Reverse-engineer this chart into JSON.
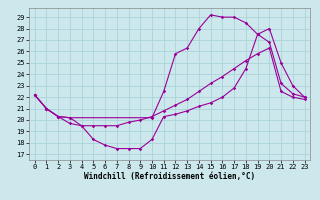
{
  "xlabel": "Windchill (Refroidissement éolien,°C)",
  "ylabel": "",
  "bg_color": "#cce8ec",
  "line_color": "#990099",
  "grid_color": "#aad4d8",
  "xlim": [
    -0.5,
    23.5
  ],
  "ylim": [
    16.5,
    29.8
  ],
  "yticks": [
    17,
    18,
    19,
    20,
    21,
    22,
    23,
    24,
    25,
    26,
    27,
    28,
    29
  ],
  "xticks": [
    0,
    1,
    2,
    3,
    4,
    5,
    6,
    7,
    8,
    9,
    10,
    11,
    12,
    13,
    14,
    15,
    16,
    17,
    18,
    19,
    20,
    21,
    22,
    23
  ],
  "line1_x": [
    0,
    1,
    2,
    3,
    10,
    11,
    12,
    13,
    14,
    15,
    16,
    17,
    18,
    19,
    20,
    21,
    22,
    23
  ],
  "line1_y": [
    22.2,
    21.0,
    20.3,
    20.2,
    20.2,
    22.5,
    25.8,
    26.3,
    28.0,
    29.2,
    29.0,
    29.0,
    28.5,
    27.5,
    26.8,
    23.2,
    22.3,
    22.0
  ],
  "line2_x": [
    0,
    1,
    2,
    3,
    4,
    5,
    6,
    7,
    8,
    9,
    10,
    11,
    12,
    13,
    14,
    15,
    16,
    17,
    18,
    19,
    20,
    21,
    22,
    23
  ],
  "line2_y": [
    22.2,
    21.0,
    20.3,
    20.2,
    19.5,
    19.5,
    19.5,
    19.5,
    19.8,
    20.0,
    20.3,
    20.8,
    21.3,
    21.8,
    22.5,
    23.2,
    23.8,
    24.5,
    25.2,
    25.8,
    26.3,
    22.5,
    22.0,
    21.8
  ],
  "line3_x": [
    0,
    1,
    2,
    3,
    4,
    5,
    6,
    7,
    8,
    9,
    10,
    11,
    12,
    13,
    14,
    15,
    16,
    17,
    18,
    19,
    20,
    21,
    22,
    23
  ],
  "line3_y": [
    22.2,
    21.0,
    20.3,
    19.7,
    19.5,
    18.3,
    17.8,
    17.5,
    17.5,
    17.5,
    18.3,
    20.3,
    20.5,
    20.8,
    21.2,
    21.5,
    22.0,
    22.8,
    24.5,
    27.5,
    28.0,
    25.0,
    23.0,
    22.0
  ],
  "tick_fontsize": 5,
  "xlabel_fontsize": 5.5
}
